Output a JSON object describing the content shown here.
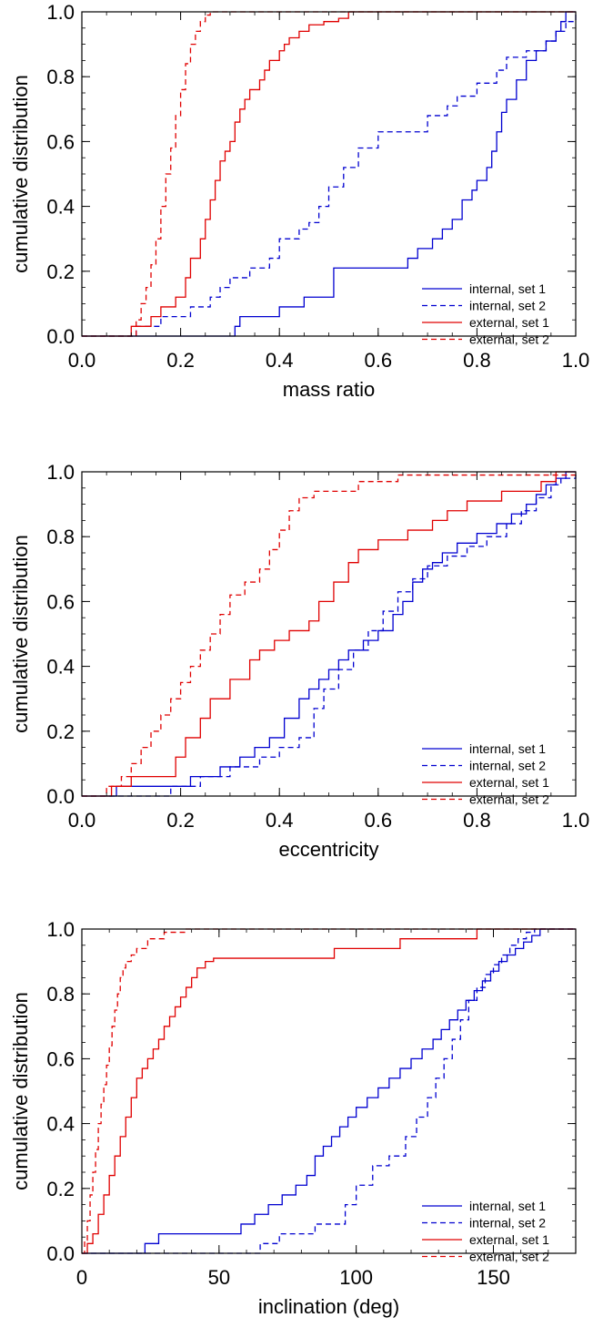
{
  "chart_data": [
    {
      "type": "line",
      "xlabel": "mass ratio",
      "ylabel": "cumulative distribution",
      "xlim": [
        0,
        1
      ],
      "ylim": [
        0,
        1
      ],
      "xticks": [
        "0.0",
        "0.2",
        "0.4",
        "0.6",
        "0.8",
        "1.0"
      ],
      "yticks": [
        "0.0",
        "0.2",
        "0.4",
        "0.6",
        "0.8",
        "1.0"
      ],
      "legend_position": "bottom-right",
      "series": [
        {
          "name": "internal, set 1",
          "color": "#0000d0",
          "dash": "solid",
          "x": [
            0,
            0.31,
            0.32,
            0.4,
            0.45,
            0.51,
            0.66,
            0.68,
            0.71,
            0.73,
            0.75,
            0.77,
            0.79,
            0.8,
            0.82,
            0.83,
            0.84,
            0.85,
            0.86,
            0.88,
            0.9,
            0.92,
            0.94,
            0.96,
            0.97,
            0.98,
            1.0
          ],
          "y": [
            0,
            0.03,
            0.06,
            0.09,
            0.12,
            0.21,
            0.24,
            0.27,
            0.3,
            0.33,
            0.36,
            0.42,
            0.45,
            0.48,
            0.52,
            0.57,
            0.63,
            0.69,
            0.73,
            0.79,
            0.85,
            0.88,
            0.91,
            0.94,
            0.97,
            1.0,
            1.0
          ]
        },
        {
          "name": "internal, set 2",
          "color": "#0000d0",
          "dash": "dashed",
          "x": [
            0,
            0.11,
            0.16,
            0.22,
            0.26,
            0.28,
            0.3,
            0.34,
            0.38,
            0.4,
            0.44,
            0.46,
            0.48,
            0.5,
            0.53,
            0.56,
            0.6,
            0.7,
            0.74,
            0.76,
            0.8,
            0.84,
            0.86,
            0.9,
            0.94,
            0.96,
            0.98,
            1.0
          ],
          "y": [
            0,
            0.03,
            0.06,
            0.09,
            0.12,
            0.15,
            0.18,
            0.21,
            0.24,
            0.3,
            0.33,
            0.35,
            0.4,
            0.46,
            0.52,
            0.58,
            0.63,
            0.68,
            0.71,
            0.74,
            0.78,
            0.82,
            0.86,
            0.88,
            0.91,
            0.94,
            0.97,
            1.0
          ]
        },
        {
          "name": "external, set 1",
          "color": "#e00000",
          "dash": "solid",
          "x": [
            0,
            0.1,
            0.14,
            0.16,
            0.19,
            0.21,
            0.22,
            0.24,
            0.25,
            0.26,
            0.27,
            0.28,
            0.29,
            0.3,
            0.31,
            0.32,
            0.33,
            0.34,
            0.36,
            0.37,
            0.38,
            0.4,
            0.41,
            0.42,
            0.44,
            0.46,
            0.49,
            0.52,
            0.54,
            0.58,
            0.65,
            1.0
          ],
          "y": [
            0,
            0.03,
            0.06,
            0.09,
            0.12,
            0.18,
            0.24,
            0.3,
            0.36,
            0.42,
            0.48,
            0.54,
            0.57,
            0.6,
            0.66,
            0.7,
            0.73,
            0.76,
            0.79,
            0.82,
            0.85,
            0.88,
            0.9,
            0.92,
            0.94,
            0.96,
            0.97,
            0.98,
            1.0,
            1.0,
            1.0,
            1.0
          ]
        },
        {
          "name": "external, set 2",
          "color": "#e00000",
          "dash": "dashed",
          "x": [
            0,
            0.11,
            0.12,
            0.13,
            0.14,
            0.15,
            0.16,
            0.17,
            0.18,
            0.19,
            0.2,
            0.21,
            0.22,
            0.23,
            0.24,
            0.25,
            0.26,
            0.27,
            1.0
          ],
          "y": [
            0,
            0.05,
            0.1,
            0.15,
            0.22,
            0.3,
            0.4,
            0.5,
            0.58,
            0.68,
            0.76,
            0.84,
            0.9,
            0.94,
            0.97,
            0.99,
            1.0,
            1.0,
            1.0
          ]
        }
      ]
    },
    {
      "type": "line",
      "xlabel": "eccentricity",
      "ylabel": "cumulative distribution",
      "xlim": [
        0,
        1
      ],
      "ylim": [
        0,
        1
      ],
      "xticks": [
        "0.0",
        "0.2",
        "0.4",
        "0.6",
        "0.8",
        "1.0"
      ],
      "yticks": [
        "0.0",
        "0.2",
        "0.4",
        "0.6",
        "0.8",
        "1.0"
      ],
      "legend_position": "bottom-right",
      "series": [
        {
          "name": "internal, set 1",
          "color": "#0000d0",
          "dash": "solid",
          "x": [
            0,
            0.07,
            0.22,
            0.28,
            0.32,
            0.35,
            0.38,
            0.41,
            0.44,
            0.46,
            0.48,
            0.5,
            0.52,
            0.54,
            0.57,
            0.6,
            0.63,
            0.65,
            0.67,
            0.69,
            0.71,
            0.73,
            0.76,
            0.8,
            0.84,
            0.87,
            0.9,
            0.92,
            0.94,
            0.96,
            0.98,
            1.0
          ],
          "y": [
            0,
            0.03,
            0.06,
            0.09,
            0.12,
            0.15,
            0.18,
            0.24,
            0.3,
            0.33,
            0.36,
            0.39,
            0.42,
            0.45,
            0.48,
            0.51,
            0.56,
            0.6,
            0.66,
            0.7,
            0.72,
            0.75,
            0.78,
            0.81,
            0.84,
            0.87,
            0.9,
            0.93,
            0.96,
            0.98,
            1.0,
            1.0
          ]
        },
        {
          "name": "internal, set 2",
          "color": "#0000d0",
          "dash": "dashed",
          "x": [
            0,
            0.18,
            0.24,
            0.3,
            0.36,
            0.4,
            0.44,
            0.47,
            0.49,
            0.52,
            0.55,
            0.58,
            0.61,
            0.64,
            0.67,
            0.7,
            0.74,
            0.78,
            0.82,
            0.86,
            0.89,
            0.92,
            0.95,
            0.97,
            1.0
          ],
          "y": [
            0,
            0.03,
            0.06,
            0.09,
            0.12,
            0.15,
            0.18,
            0.27,
            0.33,
            0.39,
            0.45,
            0.51,
            0.57,
            0.63,
            0.67,
            0.71,
            0.74,
            0.77,
            0.8,
            0.84,
            0.88,
            0.92,
            0.96,
            0.98,
            1.0
          ]
        },
        {
          "name": "external, set 1",
          "color": "#e00000",
          "dash": "solid",
          "x": [
            0,
            0.06,
            0.1,
            0.19,
            0.21,
            0.24,
            0.26,
            0.3,
            0.34,
            0.36,
            0.39,
            0.42,
            0.46,
            0.48,
            0.51,
            0.54,
            0.56,
            0.6,
            0.66,
            0.71,
            0.74,
            0.78,
            0.85,
            0.93,
            0.96,
            1.0
          ],
          "y": [
            0,
            0.03,
            0.06,
            0.12,
            0.18,
            0.24,
            0.3,
            0.36,
            0.42,
            0.45,
            0.48,
            0.51,
            0.54,
            0.6,
            0.66,
            0.72,
            0.76,
            0.79,
            0.82,
            0.85,
            0.88,
            0.91,
            0.94,
            0.97,
            1.0,
            1.0
          ]
        },
        {
          "name": "external, set 2",
          "color": "#e00000",
          "dash": "dashed",
          "x": [
            0,
            0.05,
            0.08,
            0.1,
            0.12,
            0.14,
            0.16,
            0.18,
            0.2,
            0.22,
            0.24,
            0.26,
            0.28,
            0.3,
            0.33,
            0.36,
            0.38,
            0.4,
            0.42,
            0.44,
            0.47,
            0.56,
            0.64,
            1.0
          ],
          "y": [
            0,
            0.03,
            0.06,
            0.1,
            0.15,
            0.2,
            0.25,
            0.3,
            0.35,
            0.4,
            0.45,
            0.5,
            0.56,
            0.62,
            0.66,
            0.7,
            0.76,
            0.82,
            0.88,
            0.92,
            0.94,
            0.97,
            0.99,
            1.0
          ]
        }
      ]
    },
    {
      "type": "line",
      "xlabel": "inclination (deg)",
      "ylabel": "cumulative distribution",
      "xlim": [
        0,
        180
      ],
      "ylim": [
        0,
        1
      ],
      "xticks": [
        "0",
        "50",
        "100",
        "150"
      ],
      "yticks": [
        "0.0",
        "0.2",
        "0.4",
        "0.6",
        "0.8",
        "1.0"
      ],
      "legend_position": "bottom-right",
      "series": [
        {
          "name": "internal, set 1",
          "color": "#0000d0",
          "dash": "solid",
          "x": [
            0,
            23,
            28,
            58,
            63,
            68,
            73,
            78,
            82,
            85,
            88,
            91,
            94,
            97,
            100,
            104,
            108,
            112,
            116,
            120,
            124,
            128,
            131,
            134,
            137,
            140,
            143,
            146,
            149,
            152,
            155,
            158,
            161,
            164,
            167,
            170,
            172,
            180
          ],
          "y": [
            0,
            0.03,
            0.06,
            0.09,
            0.12,
            0.15,
            0.18,
            0.21,
            0.24,
            0.3,
            0.33,
            0.36,
            0.39,
            0.42,
            0.45,
            0.48,
            0.51,
            0.54,
            0.57,
            0.6,
            0.63,
            0.66,
            0.69,
            0.72,
            0.75,
            0.78,
            0.81,
            0.84,
            0.87,
            0.9,
            0.92,
            0.94,
            0.96,
            0.98,
            1.0,
            1.0,
            1.0,
            1.0
          ]
        },
        {
          "name": "internal, set 2",
          "color": "#0000d0",
          "dash": "dashed",
          "x": [
            0,
            65,
            72,
            85,
            96,
            100,
            106,
            112,
            118,
            122,
            126,
            129,
            132,
            135,
            138,
            141,
            144,
            147,
            150,
            153,
            156,
            159,
            162,
            165,
            168,
            180
          ],
          "y": [
            0,
            0.03,
            0.06,
            0.09,
            0.15,
            0.21,
            0.27,
            0.3,
            0.36,
            0.42,
            0.48,
            0.54,
            0.6,
            0.66,
            0.72,
            0.78,
            0.82,
            0.86,
            0.89,
            0.92,
            0.95,
            0.97,
            0.99,
            1.0,
            1.0,
            1.0
          ]
        },
        {
          "name": "external, set 1",
          "color": "#e00000",
          "dash": "solid",
          "x": [
            0,
            2,
            4,
            6,
            8,
            10,
            12,
            14,
            16,
            18,
            20,
            22,
            24,
            26,
            28,
            30,
            32,
            34,
            36,
            38,
            40,
            42,
            45,
            48,
            50,
            92,
            116,
            144,
            180
          ],
          "y": [
            0,
            0.03,
            0.06,
            0.12,
            0.18,
            0.24,
            0.3,
            0.36,
            0.42,
            0.48,
            0.54,
            0.57,
            0.6,
            0.63,
            0.66,
            0.7,
            0.73,
            0.76,
            0.79,
            0.82,
            0.85,
            0.88,
            0.9,
            0.91,
            0.91,
            0.94,
            0.97,
            1.0,
            1.0
          ]
        },
        {
          "name": "external, set 2",
          "color": "#e00000",
          "dash": "dashed",
          "x": [
            0,
            1,
            2,
            3,
            4,
            5,
            6,
            7,
            8,
            9,
            10,
            11,
            12,
            13,
            14,
            15,
            16,
            18,
            20,
            24,
            30,
            38,
            180
          ],
          "y": [
            0,
            0.04,
            0.1,
            0.18,
            0.25,
            0.32,
            0.4,
            0.46,
            0.52,
            0.58,
            0.64,
            0.7,
            0.75,
            0.8,
            0.85,
            0.88,
            0.9,
            0.92,
            0.94,
            0.97,
            0.99,
            1.0,
            1.0
          ]
        }
      ]
    }
  ]
}
